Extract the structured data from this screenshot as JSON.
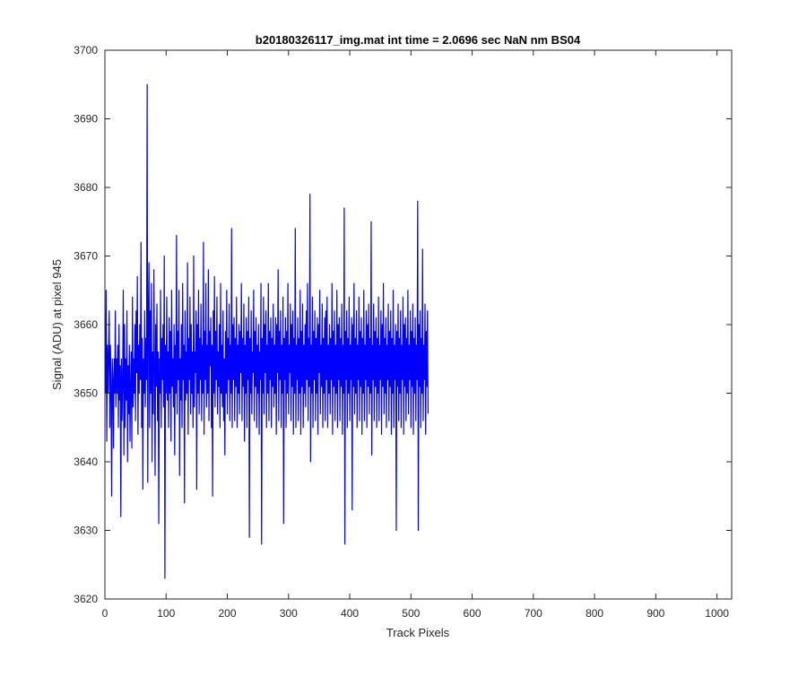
{
  "chart_data": {
    "type": "line",
    "title": "b20180326117_img.mat int time = 2.0696 sec  NaN nm BS04",
    "xlabel": "Track Pixels",
    "ylabel": "Signal (ADU) at pixel 945",
    "xlim": [
      0,
      1024
    ],
    "ylim": [
      3620,
      3700
    ],
    "xticks": [
      0,
      100,
      200,
      300,
      400,
      500,
      600,
      700,
      800,
      900,
      1000
    ],
    "yticks": [
      3620,
      3630,
      3640,
      3650,
      3660,
      3670,
      3680,
      3690,
      3700
    ],
    "grid": false,
    "legend": "none",
    "series": [
      {
        "color": "#0000ff",
        "x_start": 1,
        "x_step": 1,
        "values": [
          3650,
          3665,
          3643,
          3657,
          3650,
          3656,
          3662,
          3645,
          3657,
          3651,
          3635,
          3655,
          3652,
          3642,
          3655,
          3650,
          3662,
          3648,
          3655,
          3650,
          3657,
          3645,
          3660,
          3649,
          3654,
          3632,
          3655,
          3646,
          3652,
          3665,
          3641,
          3660,
          3645,
          3655,
          3649,
          3662,
          3640,
          3654,
          3647,
          3657,
          3643,
          3651,
          3656,
          3642,
          3664,
          3648,
          3655,
          3650,
          3660,
          3646,
          3662,
          3653,
          3667,
          3644,
          3657,
          3650,
          3660,
          3652,
          3672,
          3645,
          3658,
          3636,
          3655,
          3650,
          3662,
          3648,
          3658,
          3652,
          3695,
          3637,
          3661,
          3669,
          3645,
          3662,
          3650,
          3666,
          3640,
          3656,
          3647,
          3668,
          3654,
          3638,
          3660,
          3651,
          3663,
          3646,
          3656,
          3631,
          3655,
          3650,
          3665,
          3645,
          3658,
          3652,
          3660,
          3648,
          3670,
          3623,
          3657,
          3650,
          3664,
          3649,
          3656,
          3645,
          3661,
          3650,
          3659,
          3643,
          3665,
          3651,
          3655,
          3648,
          3660,
          3641,
          3657,
          3650,
          3673,
          3647,
          3659,
          3652,
          3665,
          3638,
          3655,
          3649,
          3660,
          3645,
          3666,
          3652,
          3657,
          3634,
          3662,
          3649,
          3656,
          3650,
          3669,
          3644,
          3658,
          3652,
          3664,
          3647,
          3660,
          3650,
          3656,
          3645,
          3670,
          3648,
          3656,
          3653,
          3662,
          3636,
          3660,
          3650,
          3665,
          3647,
          3658,
          3652,
          3663,
          3646,
          3657,
          3650,
          3672,
          3644,
          3659,
          3652,
          3666,
          3648,
          3657,
          3650,
          3668,
          3646,
          3659,
          3654,
          3661,
          3645,
          3657,
          3635,
          3662,
          3650,
          3667,
          3648,
          3659,
          3652,
          3664,
          3647,
          3656,
          3651,
          3660,
          3645,
          3666,
          3650,
          3657,
          3648,
          3662,
          3646,
          3655,
          3641,
          3659,
          3650,
          3665,
          3647,
          3658,
          3652,
          3663,
          3646,
          3657,
          3650,
          3674,
          3645,
          3660,
          3652,
          3661,
          3646,
          3658,
          3651,
          3664,
          3645,
          3657,
          3650,
          3660,
          3647,
          3659,
          3653,
          3666,
          3646,
          3658,
          3651,
          3663,
          3643,
          3657,
          3650,
          3661,
          3645,
          3659,
          3652,
          3664,
          3629,
          3658,
          3650,
          3662,
          3647,
          3656,
          3653,
          3665,
          3646,
          3659,
          3651,
          3661,
          3645,
          3657,
          3650,
          3660,
          3644,
          3656,
          3652,
          3666,
          3628,
          3658,
          3650,
          3664,
          3647,
          3660,
          3653,
          3662,
          3645,
          3657,
          3650,
          3666,
          3646,
          3659,
          3652,
          3661,
          3645,
          3658,
          3651,
          3663,
          3648,
          3657,
          3650,
          3661,
          3644,
          3660,
          3653,
          3668,
          3646,
          3659,
          3652,
          3662,
          3645,
          3657,
          3650,
          3664,
          3631,
          3658,
          3652,
          3661,
          3645,
          3659,
          3650,
          3666,
          3647,
          3657,
          3653,
          3663,
          3646,
          3660,
          3651,
          3662,
          3644,
          3658,
          3650,
          3674,
          3645,
          3657,
          3652,
          3661,
          3646,
          3658,
          3650,
          3665,
          3644,
          3659,
          3651,
          3663,
          3645,
          3657,
          3650,
          3660,
          3648,
          3662,
          3652,
          3666,
          3646,
          3658,
          3651,
          3679,
          3640,
          3657,
          3650,
          3664,
          3645,
          3659,
          3652,
          3662,
          3646,
          3658,
          3650,
          3661,
          3644,
          3660,
          3653,
          3665,
          3647,
          3657,
          3651,
          3663,
          3645,
          3658,
          3650,
          3661,
          3646,
          3662,
          3652,
          3664,
          3645,
          3657,
          3650,
          3660,
          3647,
          3658,
          3652,
          3666,
          3644,
          3659,
          3651,
          3662,
          3646,
          3657,
          3650,
          3665,
          3645,
          3660,
          3652,
          3661,
          3646,
          3658,
          3651,
          3663,
          3644,
          3657,
          3650,
          3677,
          3628,
          3659,
          3652,
          3662,
          3645,
          3658,
          3650,
          3664,
          3646,
          3657,
          3652,
          3661,
          3633,
          3660,
          3651,
          3666,
          3647,
          3658,
          3650,
          3662,
          3645,
          3657,
          3652,
          3664,
          3646,
          3659,
          3651,
          3661,
          3644,
          3658,
          3650,
          3665,
          3646,
          3657,
          3652,
          3662,
          3645,
          3660,
          3651,
          3663,
          3647,
          3658,
          3650,
          3675,
          3641,
          3657,
          3652,
          3663,
          3646,
          3659,
          3651,
          3661,
          3645,
          3658,
          3650,
          3664,
          3646,
          3657,
          3652,
          3662,
          3644,
          3660,
          3651,
          3666,
          3647,
          3658,
          3650,
          3661,
          3645,
          3657,
          3652,
          3663,
          3646,
          3659,
          3651,
          3662,
          3644,
          3658,
          3650,
          3665,
          3645,
          3657,
          3652,
          3660,
          3630,
          3659,
          3651,
          3663,
          3646,
          3658,
          3650,
          3662,
          3645,
          3657,
          3652,
          3664,
          3644,
          3660,
          3651,
          3661,
          3646,
          3658,
          3650,
          3665,
          3647,
          3657,
          3652,
          3662,
          3645,
          3659,
          3651,
          3663,
          3644,
          3658,
          3650,
          3661,
          3646,
          3657,
          3652,
          3678,
          3630,
          3660,
          3651,
          3662,
          3645,
          3658,
          3650,
          3671,
          3646,
          3657,
          3652,
          3663,
          3644,
          3659,
          3651,
          3662,
          3647
        ]
      }
    ]
  }
}
